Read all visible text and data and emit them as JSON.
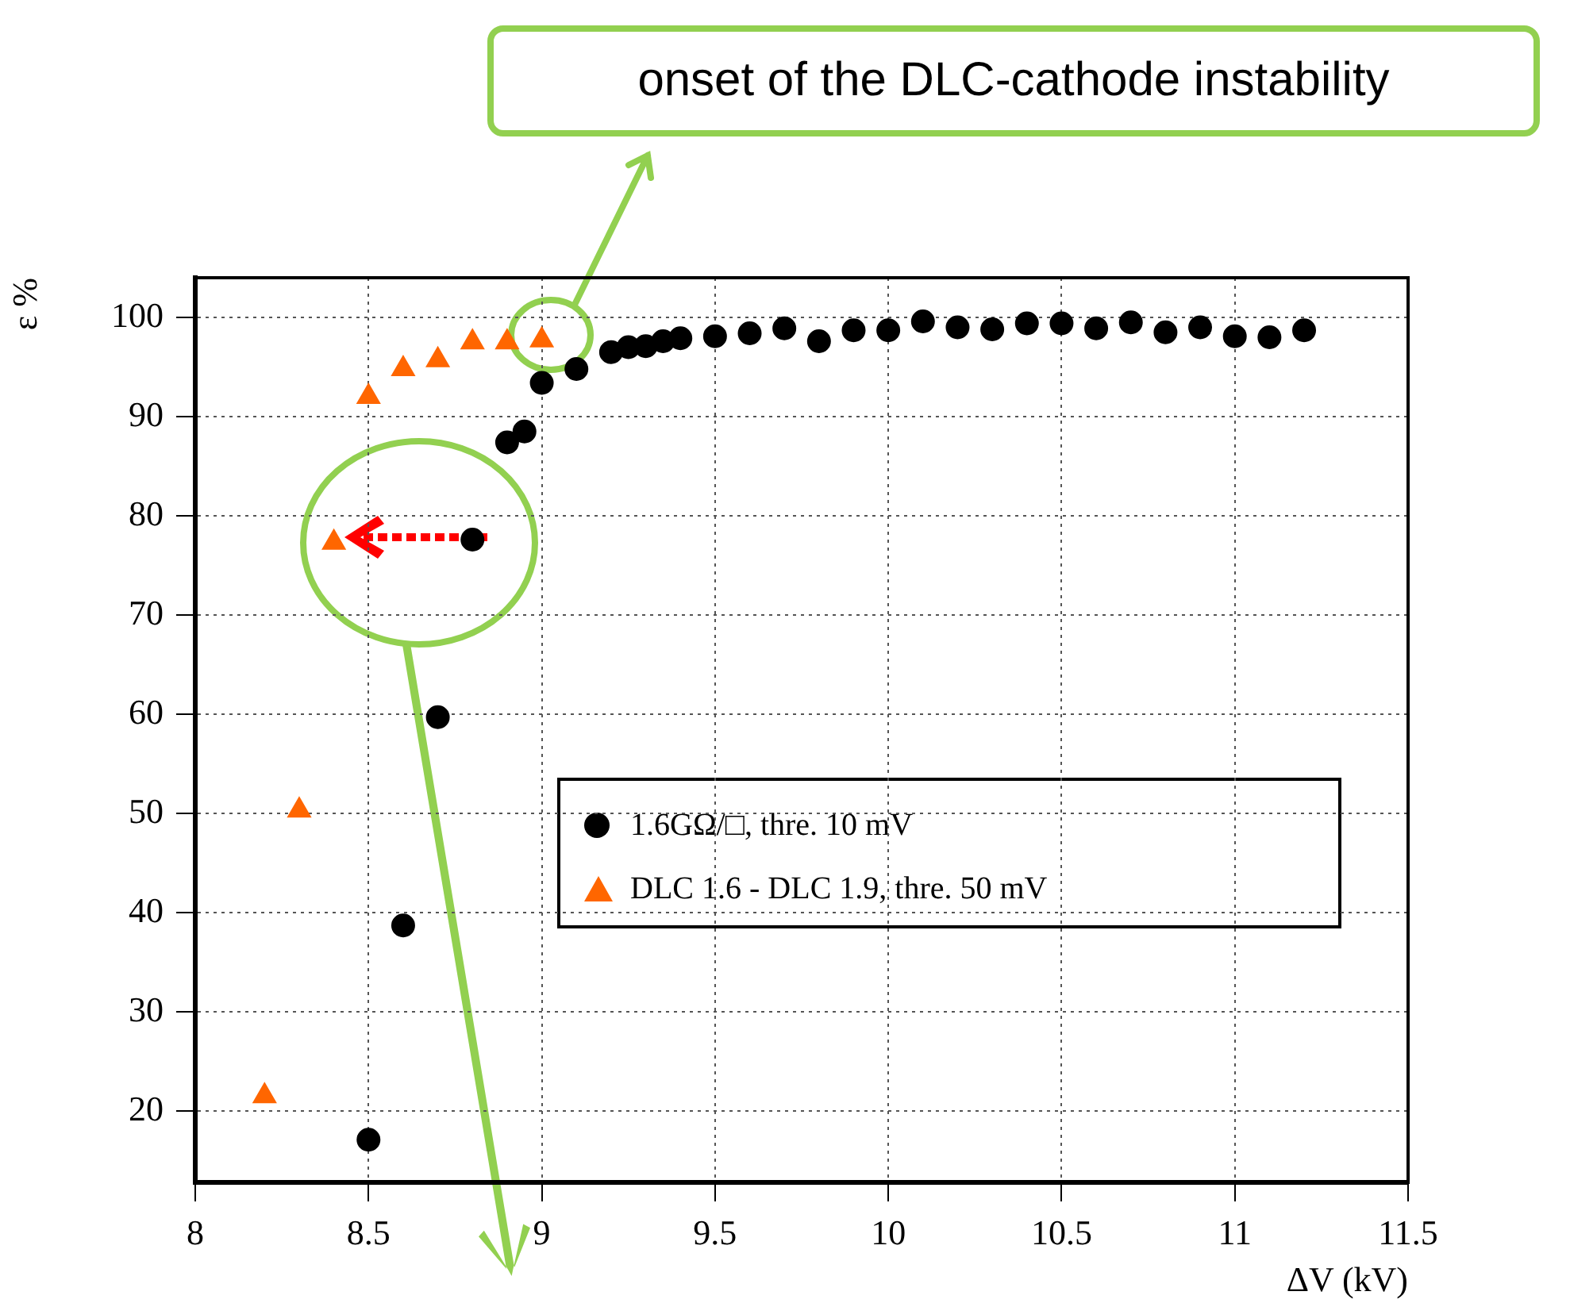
{
  "chart_data": {
    "type": "scatter",
    "xlabel": "ΔV (kV)",
    "ylabel": "ε %",
    "xlim": [
      8,
      11.5
    ],
    "xticks": [
      8,
      8.5,
      9,
      9.5,
      10,
      10.5,
      11,
      11.5
    ],
    "ylim": [
      12.8,
      104
    ],
    "yticks": [
      20,
      30,
      40,
      50,
      60,
      70,
      80,
      90,
      100
    ],
    "grid": true,
    "legend": "right",
    "annotations": [
      "onset of the DLC-cathode instability"
    ],
    "series": [
      {
        "name": "1.6GΩ/□, thre. 10 mV",
        "color": "#000000",
        "marker": "circle",
        "x": [
          8.5,
          8.6,
          8.7,
          8.8,
          8.9,
          8.95,
          9.0,
          9.1,
          9.2,
          9.25,
          9.3,
          9.35,
          9.4,
          9.5,
          9.6,
          9.7,
          9.8,
          9.9,
          10.0,
          10.1,
          10.2,
          10.3,
          10.4,
          10.5,
          10.6,
          10.7,
          10.8,
          10.9,
          11.0,
          11.1,
          11.2
        ],
        "values": [
          17.1,
          38.7,
          59.7,
          77.6,
          87.4,
          88.5,
          93.4,
          94.8,
          96.5,
          97.0,
          97.1,
          97.6,
          97.9,
          98.1,
          98.4,
          98.9,
          97.6,
          98.7,
          98.7,
          99.6,
          99.0,
          98.8,
          99.4,
          99.4,
          98.9,
          99.5,
          98.5,
          99.0,
          98.1,
          98.0,
          98.7
        ]
      },
      {
        "name": "DLC 1.6 - DLC 1.9, thre. 50 mV",
        "color": "#ff6600",
        "marker": "triangle",
        "x": [
          8.2,
          8.3,
          8.4,
          8.5,
          8.6,
          8.7,
          8.8,
          8.9,
          9.0
        ],
        "values": [
          21.5,
          50.3,
          77.3,
          92.0,
          94.8,
          95.7,
          97.5,
          97.5,
          97.7
        ]
      }
    ]
  }
}
